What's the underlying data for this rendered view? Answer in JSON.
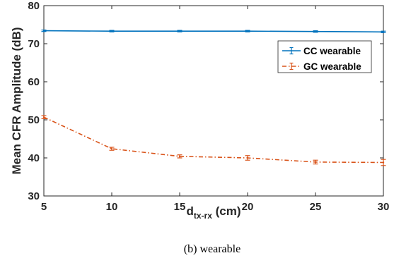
{
  "chart_data": {
    "type": "line",
    "x": [
      5,
      10,
      15,
      20,
      25,
      30
    ],
    "xlim": [
      5,
      30
    ],
    "ylim": [
      30,
      80
    ],
    "xticks": [
      "5",
      "10",
      "15",
      "20",
      "25",
      "30"
    ],
    "yticks": [
      "30",
      "40",
      "50",
      "60",
      "70",
      "80"
    ],
    "xlabel_main": "d",
    "xlabel_sub": "tx-rx",
    "xlabel_unit": " (cm)",
    "ylabel": "Mean CFR Amplitude (dB)",
    "grid": false,
    "legend_position": "top-right",
    "series": [
      {
        "name": "CC wearable",
        "color": "#0072BD",
        "line_style": "solid",
        "values": [
          73.4,
          73.3,
          73.3,
          73.3,
          73.2,
          73.1
        ],
        "errors": [
          0.2,
          0.2,
          0.2,
          0.2,
          0.2,
          0.2
        ]
      },
      {
        "name": "GC wearable",
        "color": "#D95319",
        "line_style": "dash-dot",
        "values": [
          50.7,
          42.4,
          40.4,
          40.0,
          38.9,
          38.8
        ],
        "errors": [
          0.4,
          0.4,
          0.4,
          0.6,
          0.5,
          0.8
        ]
      }
    ]
  },
  "caption": "(b)  wearable"
}
